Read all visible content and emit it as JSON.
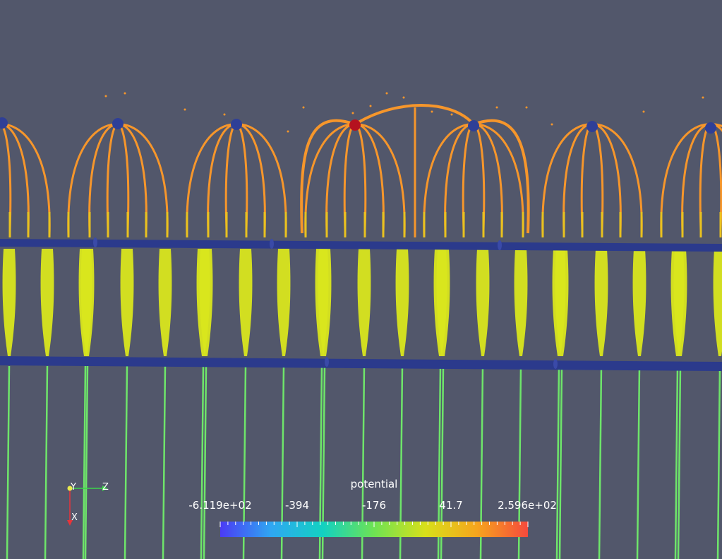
{
  "viewport": {
    "background": "#52576b"
  },
  "scalar_bar": {
    "title": "potential",
    "tick_labels": [
      "-6.119e+02",
      "-394",
      "-176",
      "41.7",
      "2.596e+02"
    ],
    "colormap": [
      "#4b3bf5",
      "#2fa7f2",
      "#12d1c2",
      "#6ee253",
      "#d8e01a",
      "#f6a51d",
      "#f54a3d"
    ]
  },
  "orientation_axes": {
    "labels": [
      "Y",
      "Z",
      "X"
    ],
    "colors": {
      "y": "#e8e84d",
      "z": "#3dd64a",
      "x": "#e8343a"
    }
  },
  "field_colors": {
    "upper_loop": "#f6962b",
    "lower_loop": "#d9e61d",
    "stem": "#6ee56a",
    "rod": "#2b3a8c",
    "electrode": "#2f3f97",
    "active_electrode": "#b5121f"
  }
}
